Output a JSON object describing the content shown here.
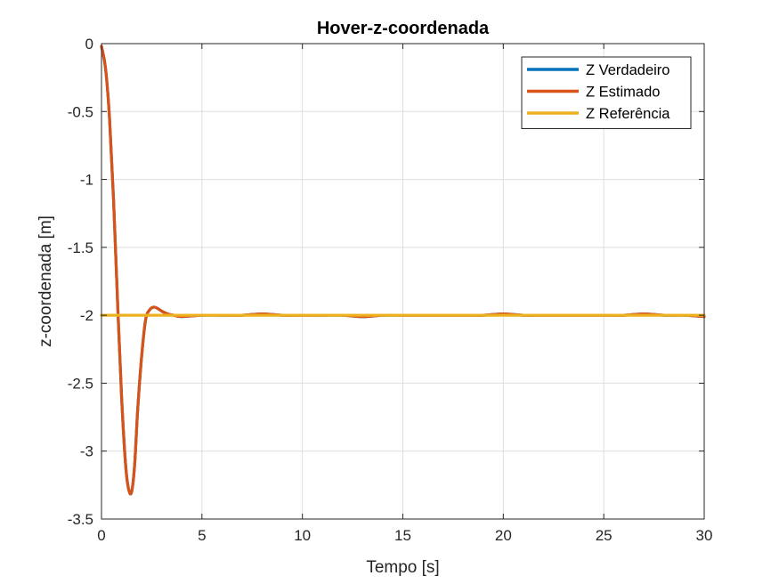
{
  "chart_data": {
    "type": "line",
    "title": "Hover-z-coordenada",
    "xlabel": "Tempo [s]",
    "ylabel": "z-coordenada [m]",
    "xlim": [
      0,
      30
    ],
    "ylim": [
      -3.5,
      0
    ],
    "xticks": [
      0,
      5,
      10,
      15,
      20,
      25,
      30
    ],
    "yticks": [
      0,
      -0.5,
      -1,
      -1.5,
      -2,
      -2.5,
      -3,
      -3.5
    ],
    "xtick_labels": [
      "0",
      "5",
      "10",
      "15",
      "20",
      "25",
      "30"
    ],
    "ytick_labels": [
      "0",
      "-0.5",
      "-1",
      "-1.5",
      "-2",
      "-2.5",
      "-3",
      "-3.5"
    ],
    "grid": true,
    "legend_position": "top-right",
    "series": [
      {
        "name": "Z Verdadeiro",
        "color": "#0072BD",
        "x": [
          0,
          0.2,
          0.4,
          0.6,
          0.8,
          1.0,
          1.2,
          1.35,
          1.5,
          1.65,
          1.8,
          2.0,
          2.2,
          2.4,
          2.6,
          2.8,
          3.0,
          3.3,
          3.6,
          4.0,
          5,
          6,
          7,
          8,
          9,
          10,
          11,
          12,
          13,
          14,
          15,
          16,
          17,
          18,
          19,
          20,
          21,
          22,
          23,
          24,
          25,
          26,
          27,
          28,
          29,
          30
        ],
        "y": [
          -0.02,
          -0.18,
          -0.55,
          -1.15,
          -1.9,
          -2.6,
          -3.1,
          -3.28,
          -3.3,
          -3.1,
          -2.7,
          -2.3,
          -2.03,
          -1.96,
          -1.94,
          -1.95,
          -1.97,
          -1.99,
          -2.0,
          -2.01,
          -2.0,
          -2.0,
          -2.0,
          -1.99,
          -2.0,
          -2.0,
          -2.0,
          -2.0,
          -2.01,
          -2.0,
          -2.0,
          -2.0,
          -2.0,
          -2.0,
          -2.0,
          -1.99,
          -2.0,
          -2.0,
          -2.0,
          -2.0,
          -2.0,
          -2.0,
          -1.99,
          -2.0,
          -2.0,
          -2.01
        ]
      },
      {
        "name": "Z Estimado",
        "color": "#D95319",
        "x": [
          0,
          0.2,
          0.4,
          0.6,
          0.8,
          1.0,
          1.2,
          1.35,
          1.5,
          1.65,
          1.8,
          2.0,
          2.2,
          2.4,
          2.6,
          2.8,
          3.0,
          3.3,
          3.6,
          4.0,
          5,
          6,
          7,
          8,
          9,
          10,
          11,
          12,
          13,
          14,
          15,
          16,
          17,
          18,
          19,
          20,
          21,
          22,
          23,
          24,
          25,
          26,
          27,
          28,
          29,
          30
        ],
        "y": [
          -0.02,
          -0.18,
          -0.55,
          -1.15,
          -1.9,
          -2.6,
          -3.1,
          -3.28,
          -3.3,
          -3.1,
          -2.7,
          -2.3,
          -2.03,
          -1.96,
          -1.94,
          -1.95,
          -1.97,
          -1.99,
          -2.0,
          -2.01,
          -2.0,
          -2.0,
          -2.0,
          -1.99,
          -2.0,
          -2.0,
          -2.0,
          -2.0,
          -2.01,
          -2.0,
          -2.0,
          -2.0,
          -2.0,
          -2.0,
          -2.0,
          -1.99,
          -2.0,
          -2.0,
          -2.0,
          -2.0,
          -2.0,
          -2.0,
          -1.99,
          -2.0,
          -2.0,
          -2.01
        ]
      },
      {
        "name": "Z Referência",
        "color": "#EDB120",
        "x": [
          0,
          30
        ],
        "y": [
          -2,
          -2
        ]
      }
    ]
  }
}
